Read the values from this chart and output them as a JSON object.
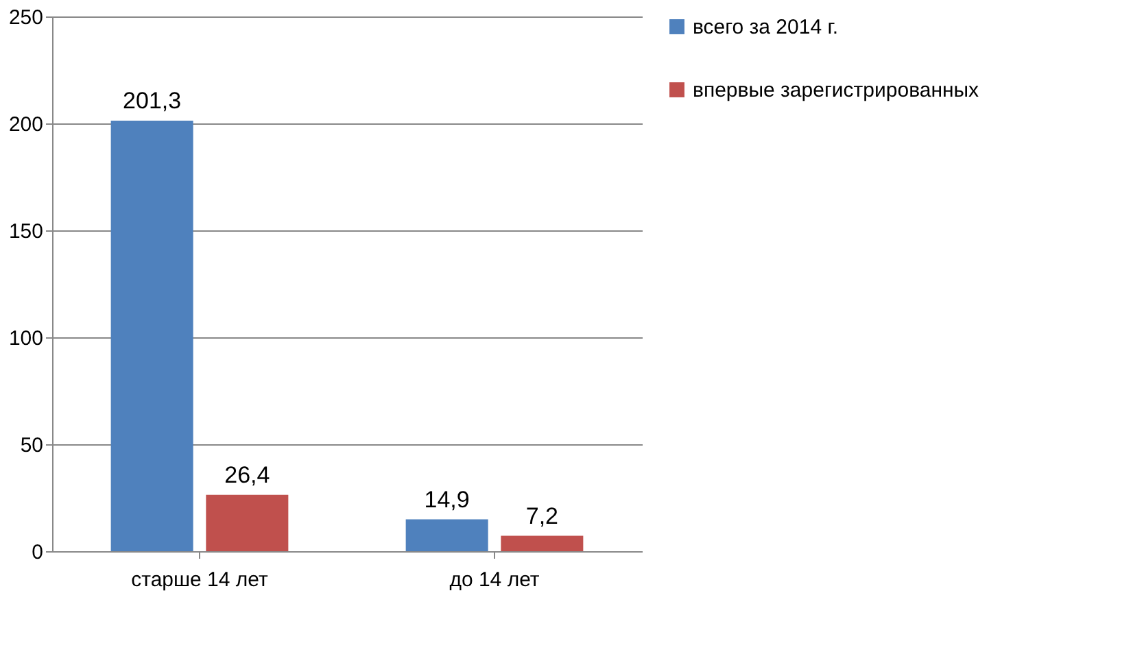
{
  "chart_data": {
    "type": "bar",
    "categories": [
      "старше 14 лет",
      "до 14 лет"
    ],
    "series": [
      {
        "name": "всего за 2014 г.",
        "color": "#4f81bd",
        "values": [
          201.3,
          14.9
        ],
        "value_labels": [
          "201,3",
          "14,9"
        ]
      },
      {
        "name": "впервые зарегистрированных",
        "color": "#c0504d",
        "values": [
          26.4,
          7.2
        ],
        "value_labels": [
          "26,4",
          "7,2"
        ]
      }
    ],
    "ylim": [
      0,
      250
    ],
    "yticks": [
      0,
      50,
      100,
      150,
      200,
      250
    ],
    "grid": "y",
    "legend": "right"
  }
}
